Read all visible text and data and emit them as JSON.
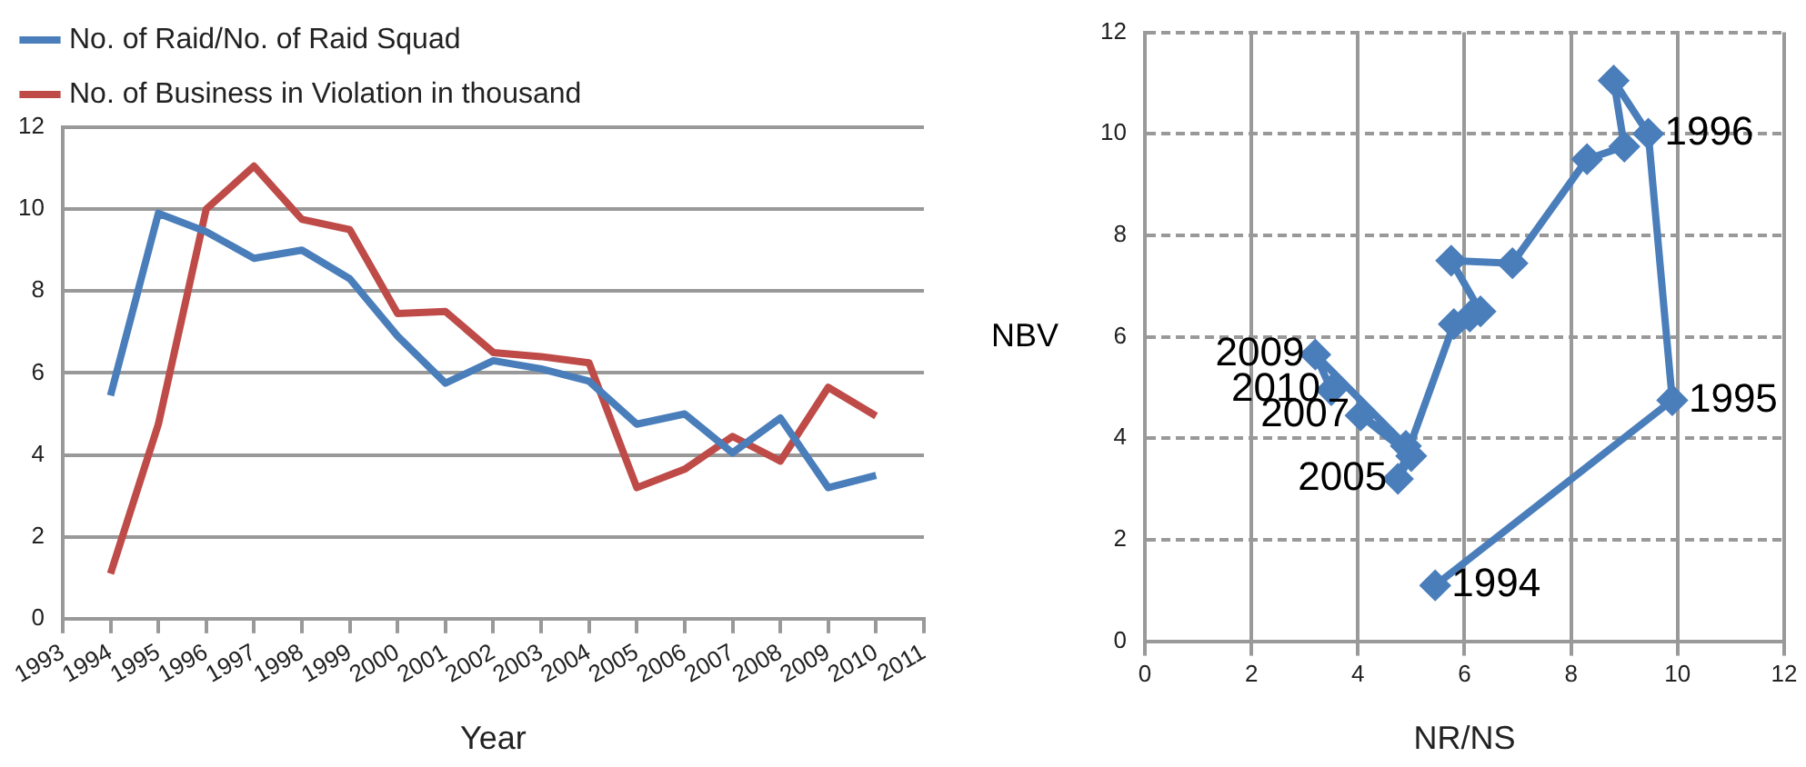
{
  "chart_data": [
    {
      "type": "line",
      "xlabel": "Year",
      "x": [
        1994,
        1995,
        1996,
        1997,
        1998,
        1999,
        2000,
        2001,
        2002,
        2003,
        2004,
        2005,
        2006,
        2007,
        2008,
        2009,
        2010
      ],
      "xlim": [
        1993,
        2011
      ],
      "xticks": [
        1993,
        1994,
        1995,
        1996,
        1997,
        1998,
        1999,
        2000,
        2001,
        2002,
        2003,
        2004,
        2005,
        2006,
        2007,
        2008,
        2009,
        2010,
        2011
      ],
      "ylim": [
        0,
        12
      ],
      "yticks": [
        0,
        2,
        4,
        6,
        8,
        10,
        12
      ],
      "grid": "y",
      "legend": "top",
      "marker": "none",
      "series": [
        {
          "name": "No. of Raid/No. of Raid Squad",
          "color": "#4a7ebb",
          "values": [
            5.45,
            9.9,
            9.45,
            8.8,
            9.0,
            8.3,
            6.9,
            5.75,
            6.3,
            6.1,
            5.8,
            4.75,
            5.0,
            4.05,
            4.9,
            3.2,
            3.5
          ]
        },
        {
          "name": "No. of Business in Violation in thousand",
          "color": "#be4b48",
          "values": [
            1.1,
            4.75,
            10.0,
            11.05,
            9.75,
            9.5,
            7.45,
            7.5,
            6.5,
            6.4,
            6.25,
            3.2,
            3.65,
            4.45,
            3.85,
            5.65,
            4.95
          ]
        }
      ]
    },
    {
      "type": "line",
      "xlabel": "NR/NS",
      "ylabel": "NBV",
      "xlim": [
        0,
        12
      ],
      "xticks": [
        0,
        2,
        4,
        6,
        8,
        10,
        12
      ],
      "ylim": [
        0,
        12
      ],
      "yticks": [
        0,
        2,
        4,
        6,
        8,
        10,
        12
      ],
      "grid": true,
      "marker": "diamond",
      "series": [
        {
          "color": "#4a7ebb",
          "x": [
            5.45,
            9.9,
            9.45,
            8.8,
            9.0,
            8.3,
            6.9,
            5.75,
            6.3,
            6.1,
            5.8,
            4.75,
            5.0,
            4.05,
            4.9,
            3.2,
            3.5
          ],
          "values": [
            1.1,
            4.75,
            10.0,
            11.05,
            9.75,
            9.5,
            7.45,
            7.5,
            6.5,
            6.4,
            6.25,
            3.2,
            3.65,
            4.45,
            3.85,
            5.65,
            4.95
          ]
        }
      ],
      "annotations": [
        {
          "text": "1994",
          "x": 5.45,
          "y": 1.1
        },
        {
          "text": "1995",
          "x": 9.9,
          "y": 4.75
        },
        {
          "text": "1996",
          "x": 9.45,
          "y": 10.0
        },
        {
          "text": "2005",
          "x": 4.75,
          "y": 3.2
        },
        {
          "text": "2007",
          "x": 4.05,
          "y": 4.45
        },
        {
          "text": "2009",
          "x": 3.2,
          "y": 5.65
        },
        {
          "text": "2010",
          "x": 3.5,
          "y": 4.95
        }
      ]
    }
  ]
}
